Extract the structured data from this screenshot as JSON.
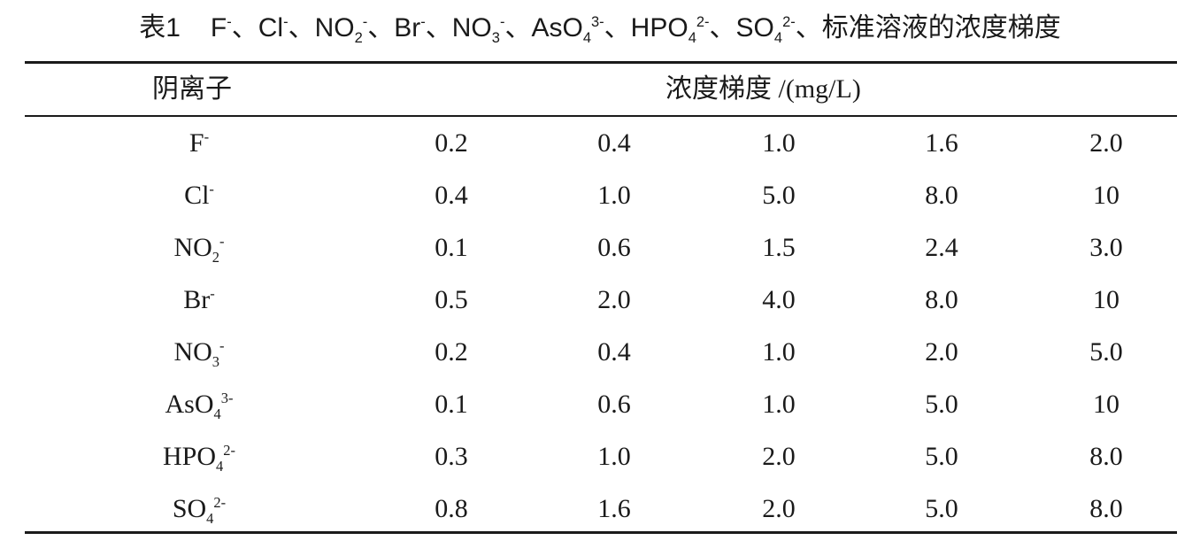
{
  "caption": {
    "label": "表1",
    "ions": [
      {
        "base": "F",
        "sub": "",
        "sup": "-"
      },
      {
        "base": "Cl",
        "sub": "",
        "sup": "-"
      },
      {
        "base": "NO",
        "sub": "2",
        "sup": "-"
      },
      {
        "base": "Br",
        "sub": "",
        "sup": "-"
      },
      {
        "base": "NO",
        "sub": "3",
        "sup": "-"
      },
      {
        "base": "AsO",
        "sub": "4",
        "sup": "3-"
      },
      {
        "base": "HPO",
        "sub": "4",
        "sup": "2-"
      },
      {
        "base": "SO",
        "sub": "4",
        "sup": "2-"
      }
    ],
    "separator": "、",
    "suffix": "标准溶液的浓度梯度"
  },
  "table": {
    "header_anion": "阴离子",
    "header_gradient": "浓度梯度 /(mg/L)",
    "rows": [
      {
        "ion": {
          "base": "F",
          "sub": "",
          "sup": "-"
        },
        "values": [
          "0.2",
          "0.4",
          "1.0",
          "1.6",
          "2.0"
        ]
      },
      {
        "ion": {
          "base": "Cl",
          "sub": "",
          "sup": "-"
        },
        "values": [
          "0.4",
          "1.0",
          "5.0",
          "8.0",
          "10"
        ]
      },
      {
        "ion": {
          "base": "NO",
          "sub": "2",
          "sup": "-"
        },
        "values": [
          "0.1",
          "0.6",
          "1.5",
          "2.4",
          "3.0"
        ]
      },
      {
        "ion": {
          "base": "Br",
          "sub": "",
          "sup": "-"
        },
        "values": [
          "0.5",
          "2.0",
          "4.0",
          "8.0",
          "10"
        ]
      },
      {
        "ion": {
          "base": "NO",
          "sub": "3",
          "sup": "-"
        },
        "values": [
          "0.2",
          "0.4",
          "1.0",
          "2.0",
          "5.0"
        ]
      },
      {
        "ion": {
          "base": "AsO",
          "sub": "4",
          "sup": "3-"
        },
        "values": [
          "0.1",
          "0.6",
          "1.0",
          "5.0",
          "10"
        ]
      },
      {
        "ion": {
          "base": "HPO",
          "sub": "4",
          "sup": "2-"
        },
        "values": [
          "0.3",
          "1.0",
          "2.0",
          "5.0",
          "8.0"
        ]
      },
      {
        "ion": {
          "base": "SO",
          "sub": "4",
          "sup": "2-"
        },
        "values": [
          "0.8",
          "1.6",
          "2.0",
          "5.0",
          "8.0"
        ]
      }
    ]
  }
}
